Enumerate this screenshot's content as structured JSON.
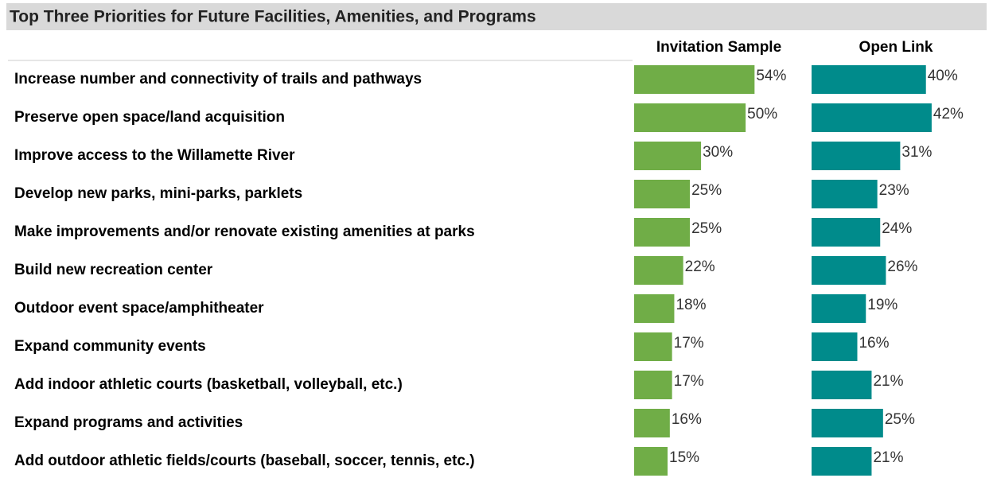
{
  "chart_data": {
    "type": "bar",
    "orientation": "horizontal",
    "title": "Top Three Priorities for Future Facilities, Amenities, and Programs",
    "categories": [
      "Increase number and connectivity of trails and pathways",
      "Preserve open space/land acquisition",
      "Improve access to the Willamette River",
      "Develop new parks, mini-parks, parklets",
      "Make improvements and/or renovate existing amenities at parks",
      "Build new recreation center",
      "Outdoor event space/amphitheater",
      "Expand community events",
      "Add indoor athletic courts (basketball, volleyball, etc.)",
      "Expand programs and activities",
      "Add outdoor athletic fields/courts (baseball, soccer, tennis, etc.)"
    ],
    "series": [
      {
        "name": "Invitation Sample",
        "color": "#70ad47",
        "xlim": [
          0,
          76
        ],
        "values": [
          54,
          50,
          30,
          25,
          25,
          22,
          18,
          17,
          17,
          16,
          15
        ],
        "value_labels": [
          "54%",
          "50%",
          "30%",
          "25%",
          "25%",
          "22%",
          "18%",
          "17%",
          "17%",
          "16%",
          "15%"
        ]
      },
      {
        "name": "Open Link",
        "color": "#008b8b",
        "xlim": [
          0,
          59
        ],
        "values": [
          40,
          42,
          31,
          23,
          24,
          26,
          19,
          16,
          21,
          25,
          21
        ],
        "value_labels": [
          "40%",
          "42%",
          "31%",
          "23%",
          "24%",
          "26%",
          "19%",
          "16%",
          "21%",
          "25%",
          "21%"
        ]
      }
    ]
  }
}
